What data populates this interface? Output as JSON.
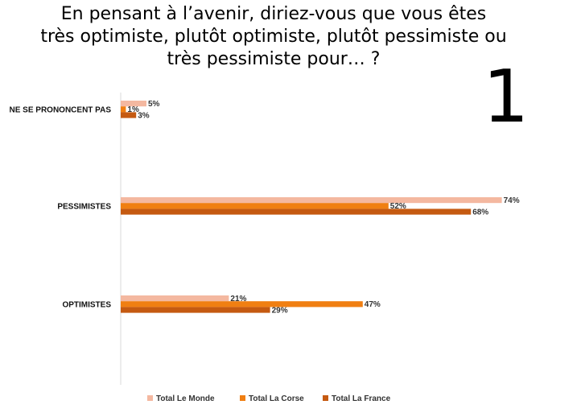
{
  "title": {
    "line1": "En pensant à l’avenir, diriez-vous que vous êtes",
    "line2": "très optimiste, plutôt optimiste, plutôt pessimiste ou",
    "line3": "très pessimiste pour… ?"
  },
  "slide_number": "1",
  "colors": {
    "Total Le Monde": "#f4b8a0",
    "Total La Corse": "#f07f12",
    "Total La France": "#c55a11",
    "axis": "#d9d9d9"
  },
  "chart_data": {
    "type": "bar",
    "orientation": "horizontal",
    "categories": [
      "NE SE PRONONCENT PAS",
      "PESSIMISTES",
      "OPTIMISTES"
    ],
    "series": [
      {
        "name": "Total Le Monde",
        "values": [
          5,
          74,
          21
        ],
        "labels": [
          "5%",
          "74%",
          "21%"
        ]
      },
      {
        "name": "Total La Corse",
        "values": [
          1,
          52,
          47
        ],
        "labels": [
          "1%",
          "52%",
          "47%"
        ]
      },
      {
        "name": "Total La France",
        "values": [
          3,
          68,
          29
        ],
        "labels": [
          "3%",
          "68%",
          "29%"
        ]
      }
    ],
    "unit": "%",
    "xlim": [
      0,
      80
    ],
    "grid": false,
    "legend_position": "bottom"
  }
}
